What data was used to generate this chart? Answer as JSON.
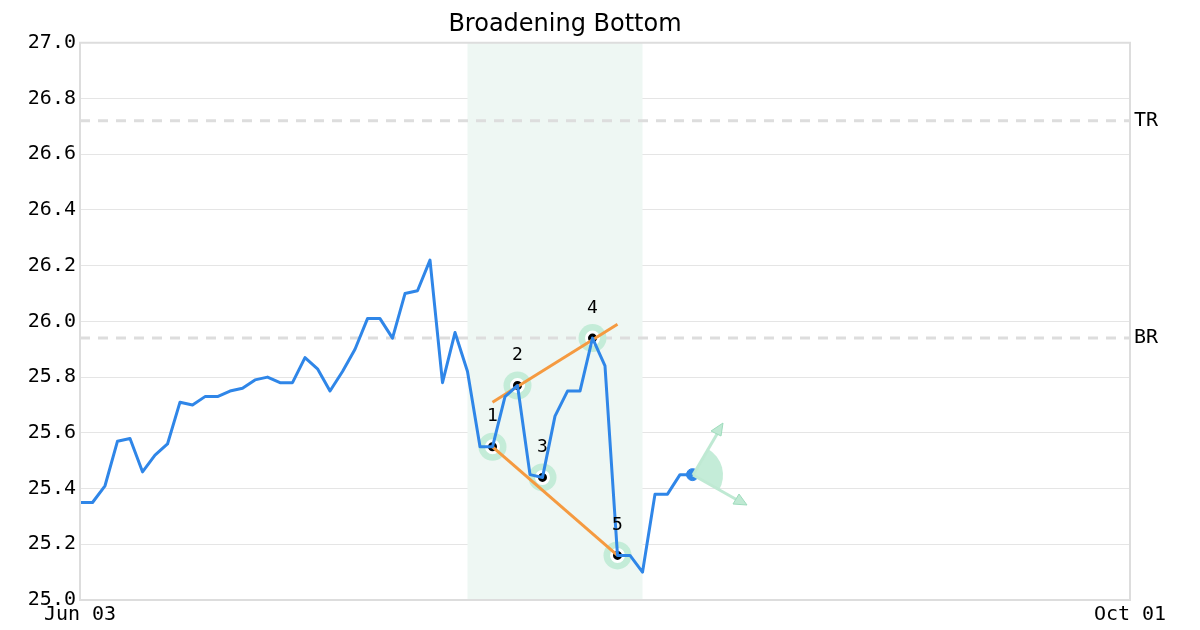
{
  "chart_data": {
    "type": "line",
    "title": "Broadening Bottom",
    "categories": [
      "Jun 03",
      null,
      null,
      null,
      null,
      null,
      null,
      null,
      null,
      null,
      null,
      null,
      null,
      null,
      null,
      null,
      null,
      null,
      null,
      null,
      null,
      null,
      null,
      null,
      null,
      null,
      null,
      null,
      null,
      null,
      null,
      null,
      null,
      null,
      null,
      null,
      null,
      null,
      null,
      null,
      null,
      null,
      null,
      null,
      null,
      null,
      null,
      null,
      null,
      null,
      null,
      null,
      null,
      null,
      null,
      null,
      null,
      null,
      null,
      null,
      null,
      null,
      null,
      null,
      null,
      null,
      null,
      null,
      null,
      null,
      null,
      null,
      null,
      null,
      null,
      null,
      null,
      null,
      null,
      null,
      null,
      null,
      null,
      null,
      "Oct 01"
    ],
    "ylim": [
      25,
      27
    ],
    "yticks": [
      {
        "value": 25,
        "label": "25.0"
      },
      {
        "value": 25.2,
        "label": "25.2"
      },
      {
        "value": 25.4,
        "label": "25.4"
      },
      {
        "value": 25.6,
        "label": "25.6"
      },
      {
        "value": 25.8,
        "label": "25.8"
      },
      {
        "value": 26,
        "label": "26.0"
      },
      {
        "value": 26.2,
        "label": "26.2"
      },
      {
        "value": 26.4,
        "label": "26.4"
      },
      {
        "value": 26.6,
        "label": "26.6"
      },
      {
        "value": 26.8,
        "label": "26.8"
      },
      {
        "value": 27,
        "label": "27.0"
      }
    ],
    "grid": "y",
    "legend": false,
    "series": [
      {
        "color": "#2f86e8",
        "values": [
          25.35,
          25.35,
          25.41,
          25.57,
          25.58,
          25.46,
          25.52,
          25.56,
          25.71,
          25.7,
          25.73,
          25.73,
          25.75,
          25.76,
          25.79,
          25.8,
          25.78,
          25.78,
          25.87,
          25.83,
          25.75,
          25.82,
          25.9,
          26.01,
          26.01,
          25.94,
          26.1,
          26.11,
          26.22,
          25.78,
          25.96,
          25.82,
          25.55,
          25.55,
          25.73,
          25.77,
          25.45,
          25.44,
          25.66,
          25.75,
          25.75,
          25.94,
          25.84,
          25.16,
          25.16,
          25.1,
          25.38,
          25.38,
          25.45,
          25.45,
          null,
          null,
          null,
          null,
          null,
          null,
          null,
          null,
          null,
          null,
          null,
          null,
          null,
          null,
          null,
          null,
          null,
          null,
          null,
          null,
          null,
          null,
          null,
          null,
          null,
          null,
          null,
          null,
          null,
          null,
          null,
          null,
          null,
          null,
          null
        ]
      },
      {
        "type": "line",
        "color": "#f59a40",
        "values": [
          null,
          null,
          null,
          null,
          null,
          null,
          null,
          null,
          null,
          null,
          null,
          null,
          null,
          null,
          null,
          null,
          null,
          null,
          null,
          null,
          null,
          null,
          null,
          null,
          null,
          null,
          null,
          null,
          null,
          null,
          null,
          null,
          null,
          25.71,
          null,
          null,
          null,
          null,
          null,
          null,
          null,
          null,
          null,
          25.99,
          null,
          null,
          null,
          null,
          null,
          null,
          null,
          null,
          null,
          null,
          null,
          null,
          null,
          null,
          null,
          null,
          null,
          null,
          null,
          null,
          null,
          null,
          null,
          null,
          null,
          null,
          null,
          null,
          null,
          null,
          null,
          null,
          null,
          null,
          null,
          null,
          null,
          null,
          null,
          null,
          null
        ]
      },
      {
        "type": "line",
        "color": "#f59a40",
        "values": [
          null,
          null,
          null,
          null,
          null,
          null,
          null,
          null,
          null,
          null,
          null,
          null,
          null,
          null,
          null,
          null,
          null,
          null,
          null,
          null,
          null,
          null,
          null,
          null,
          null,
          null,
          null,
          null,
          null,
          null,
          null,
          null,
          null,
          25.55,
          null,
          null,
          null,
          null,
          null,
          null,
          null,
          null,
          null,
          25.16,
          null,
          null,
          null,
          null,
          null,
          null,
          null,
          null,
          null,
          null,
          null,
          null,
          null,
          null,
          null,
          null,
          null,
          null,
          null,
          null,
          null,
          null,
          null,
          null,
          null,
          null,
          null,
          null,
          null,
          null,
          null,
          null,
          null,
          null,
          null,
          null,
          null,
          null,
          null,
          null,
          null
        ]
      },
      {
        "type": "scatter",
        "color": "#000000",
        "marker": "circle",
        "values": [
          null,
          null,
          null,
          null,
          null,
          null,
          null,
          null,
          null,
          null,
          null,
          null,
          null,
          null,
          null,
          null,
          null,
          null,
          null,
          null,
          null,
          null,
          null,
          null,
          null,
          null,
          null,
          null,
          null,
          null,
          null,
          null,
          null,
          25.55,
          null,
          25.77,
          null,
          25.44,
          null,
          null,
          null,
          25.94,
          null,
          25.16,
          null,
          null,
          null,
          null,
          null,
          null,
          null,
          null,
          null,
          null,
          null,
          null,
          null,
          null,
          null,
          null,
          null,
          null,
          null,
          null,
          null,
          null,
          null,
          null,
          null,
          null,
          null,
          null,
          null,
          null,
          null,
          null,
          null,
          null,
          null,
          null,
          null,
          null,
          null,
          null,
          null
        ]
      },
      {
        "type": "scatter",
        "color": "#2f86e8",
        "marker": "circle",
        "values": [
          null,
          null,
          null,
          null,
          null,
          null,
          null,
          null,
          null,
          null,
          null,
          null,
          null,
          null,
          null,
          null,
          null,
          null,
          null,
          null,
          null,
          null,
          null,
          null,
          null,
          null,
          null,
          null,
          null,
          null,
          null,
          null,
          null,
          null,
          null,
          null,
          null,
          null,
          null,
          null,
          null,
          null,
          null,
          null,
          null,
          null,
          null,
          null,
          null,
          25.45,
          null,
          null,
          null,
          null,
          null,
          null,
          null,
          null,
          null,
          null,
          null,
          null,
          null,
          null,
          null,
          null,
          null,
          null,
          null,
          null,
          null,
          null,
          null,
          null,
          null,
          null,
          null,
          null,
          null,
          null,
          null,
          null,
          null,
          null,
          null
        ]
      }
    ],
    "annotations": [
      "1",
      "2",
      "3",
      "4",
      "5"
    ],
    "ref_lines": [
      {
        "axis": "y",
        "value": 26.72,
        "label": "TR",
        "color": "#dddddd",
        "line_style": "dashed"
      },
      {
        "axis": "y",
        "value": 25.94,
        "label": "BR",
        "color": "#dddddd",
        "line_style": "dashed"
      }
    ]
  }
}
